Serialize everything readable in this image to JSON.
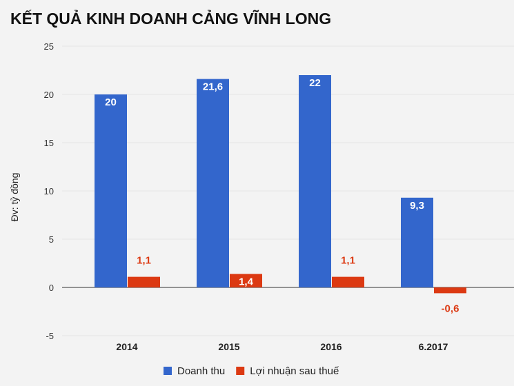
{
  "chart_data": {
    "type": "bar",
    "title": "KẾT QUẢ KINH DOANH CẢNG VĨNH LONG",
    "ylabel": "Đv: tỷ đồng",
    "xlabel": "",
    "categories": [
      "2014",
      "2015",
      "2016",
      "6.2017"
    ],
    "series": [
      {
        "name": "Doanh thu",
        "color": "#3366cc",
        "values": [
          20,
          21.6,
          22,
          9.3
        ],
        "labels": [
          "20",
          "21,6",
          "22",
          "9,3"
        ]
      },
      {
        "name": "Lợi nhuận sau thuế",
        "color": "#dc3912",
        "values": [
          1.1,
          1.4,
          1.1,
          -0.6
        ],
        "labels": [
          "1,1",
          "1,4",
          "1,1",
          "-0,6"
        ]
      }
    ],
    "ylim": [
      -5,
      25
    ],
    "yticks": [
      "-5",
      "0",
      "5",
      "10",
      "15",
      "20",
      "25"
    ],
    "grid": true,
    "legend": "bottom"
  }
}
